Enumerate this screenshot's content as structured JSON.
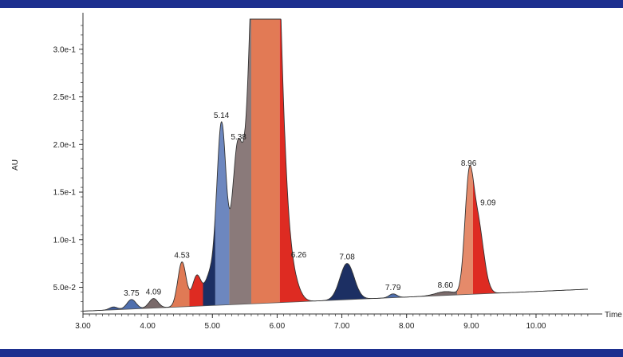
{
  "chart_data": {
    "type": "area",
    "xlabel": "Time",
    "ylabel": "AU",
    "xlim": [
      3.0,
      10.9
    ],
    "ylim": [
      0.022,
      0.335
    ],
    "grid": false,
    "x_ticks": [
      "3.00",
      "4.00",
      "5.00",
      "6.00",
      "7.00",
      "8.00",
      "9.00",
      "10.00"
    ],
    "y_ticks": [
      "5.0e-2",
      "1.0e-1",
      "1.5e-1",
      "2.0e-1",
      "2.5e-1",
      "3.0e-1"
    ],
    "y_tick_values": [
      0.05,
      0.1,
      0.15,
      0.2,
      0.25,
      0.3
    ],
    "baseline": {
      "start": [
        3.0,
        0.025
      ],
      "end": [
        10.8,
        0.048
      ]
    },
    "peaks": [
      {
        "label": "",
        "rt": 3.47,
        "height": 0.003,
        "sigma": 0.06,
        "color": "#3f5b9a"
      },
      {
        "label": "3.75",
        "rt": 3.75,
        "height": 0.01,
        "sigma": 0.07,
        "color": "#4f6fae"
      },
      {
        "label": "4.09",
        "rt": 4.09,
        "height": 0.01,
        "sigma": 0.07,
        "color": "#7a6a6a"
      },
      {
        "label": "4.53",
        "rt": 4.53,
        "height": 0.047,
        "sigma": 0.065,
        "color": "#e07a55"
      },
      {
        "label": "",
        "rt": 4.76,
        "height": 0.032,
        "sigma": 0.07,
        "color": "#de2b22"
      },
      {
        "label": "",
        "rt": 4.95,
        "height": 0.028,
        "sigma": 0.07,
        "color": "#1c2f63"
      },
      {
        "label": "5.14",
        "rt": 5.14,
        "height": 0.19,
        "sigma": 0.075,
        "color": "#6d87bf"
      },
      {
        "label": "5.38",
        "rt": 5.38,
        "height": 0.14,
        "sigma": 0.08,
        "color": "#8a7a7a"
      },
      {
        "label": "",
        "rt": 5.82,
        "height": 0.8,
        "sigma": 0.17,
        "color": "#e27a55",
        "clipped": true
      },
      {
        "label": "6.26",
        "rt": 6.26,
        "height": 0.012,
        "sigma": 0.1,
        "color": "#de2b22"
      },
      {
        "label": "7.08",
        "rt": 7.08,
        "height": 0.038,
        "sigma": 0.11,
        "color": "#1c2f63"
      },
      {
        "label": "7.79",
        "rt": 7.79,
        "height": 0.004,
        "sigma": 0.06,
        "color": "#4f6fae"
      },
      {
        "label": "8.60",
        "rt": 8.6,
        "height": 0.004,
        "sigma": 0.15,
        "color": "#7a6a6a"
      },
      {
        "label": "8.96",
        "rt": 8.96,
        "height": 0.1,
        "sigma": 0.065,
        "color": "#e58a6a"
      },
      {
        "label": "9.09",
        "rt": 9.09,
        "height": 0.078,
        "sigma": 0.095,
        "color": "#de2b22"
      }
    ],
    "tail_end": 10.8
  }
}
